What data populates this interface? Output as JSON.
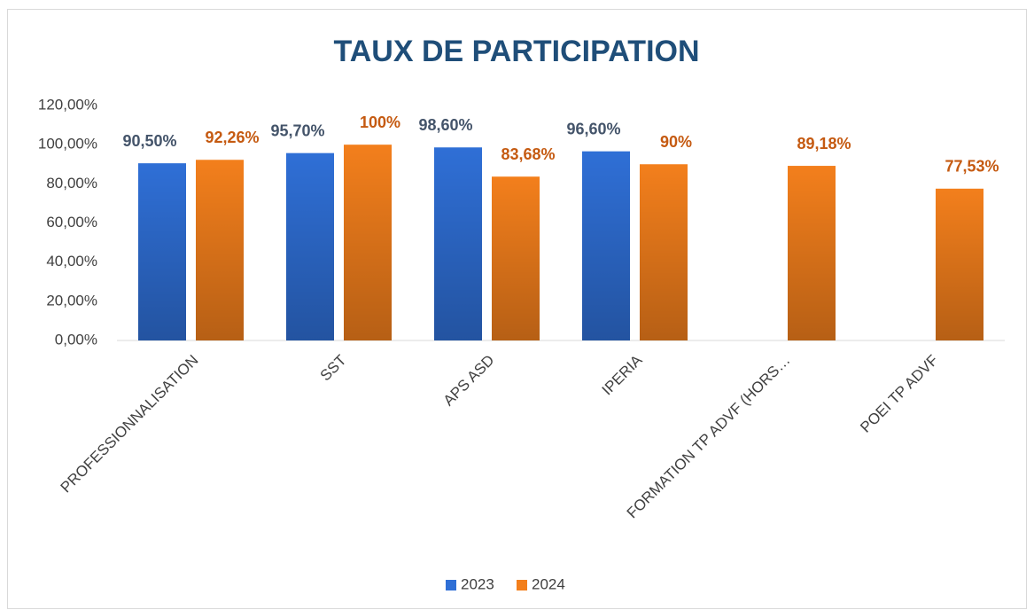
{
  "chart_data": {
    "type": "bar",
    "title": "TAUX DE PARTICIPATION",
    "categories": [
      "PROFESSIONNALISATION",
      "SST",
      "APS ASD",
      "IPERIA",
      "FORMATION TP ADVF (HORS…",
      "POEI TP ADVF"
    ],
    "series": [
      {
        "name": "2023",
        "color": "#2f6fd6",
        "values": [
          90.5,
          95.7,
          98.6,
          96.6,
          null,
          null
        ],
        "value_labels": [
          "90,50%",
          "95,70%",
          "98,60%",
          "96,60%",
          null,
          null
        ]
      },
      {
        "name": "2024",
        "color": "#f37f1c",
        "values": [
          92.26,
          100,
          83.68,
          90,
          89.18,
          77.53
        ],
        "value_labels": [
          "92,26%",
          "100%",
          "83,68%",
          "90%",
          "89,18%",
          "77,53%"
        ]
      }
    ],
    "ylim": [
      0,
      120
    ],
    "yticks": [
      {
        "value": 0,
        "label": "0,00%"
      },
      {
        "value": 20,
        "label": "20,00%"
      },
      {
        "value": 40,
        "label": "40,00%"
      },
      {
        "value": 60,
        "label": "60,00%"
      },
      {
        "value": 80,
        "label": "80,00%"
      },
      {
        "value": 100,
        "label": "100,00%"
      },
      {
        "value": 120,
        "label": "120,00%"
      }
    ],
    "grid": false,
    "legend": "bottom"
  }
}
